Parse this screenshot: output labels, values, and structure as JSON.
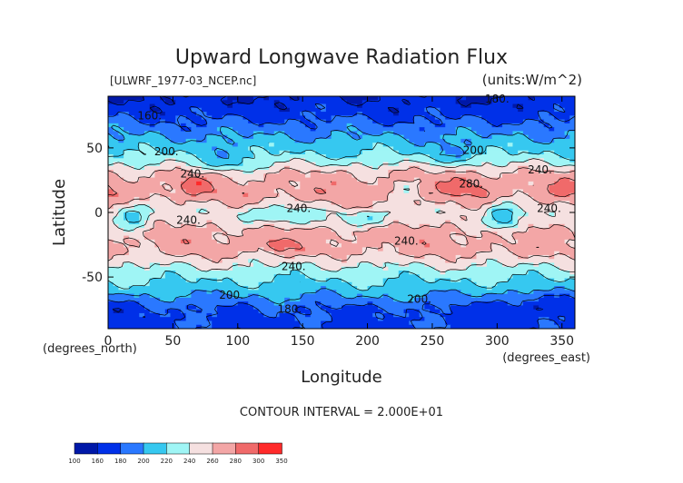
{
  "chart_data": {
    "type": "heatmap",
    "title": "Upward Longwave Radiation Flux",
    "subtitle_left": "[ULWRF_1977-03_NCEP.nc]",
    "units": "(units:W/m^2)",
    "xlabel": "Longitude",
    "ylabel": "Latitude",
    "x_unit_note": "(degrees_east)",
    "y_unit_note": "(degrees_north)",
    "xlim": [
      0,
      360
    ],
    "ylim": [
      -90,
      90
    ],
    "x_ticks": [
      0,
      50,
      100,
      150,
      200,
      250,
      300,
      350
    ],
    "y_ticks": [
      -50,
      0,
      50
    ],
    "contour_interval_text": "CONTOUR INTERVAL = 2.000E+01",
    "contour_labels": [
      {
        "text": "160.",
        "lon": 32,
        "lat": 75
      },
      {
        "text": "180.",
        "lon": 300,
        "lat": 88
      },
      {
        "text": "200.",
        "lon": 45,
        "lat": 47
      },
      {
        "text": "200.",
        "lon": 283,
        "lat": 48
      },
      {
        "text": "240.",
        "lon": 65,
        "lat": 30
      },
      {
        "text": "240.",
        "lon": 333,
        "lat": 33
      },
      {
        "text": "280.",
        "lon": 280,
        "lat": 22
      },
      {
        "text": "240.",
        "lon": 62,
        "lat": -6
      },
      {
        "text": "240.",
        "lon": 147,
        "lat": 3
      },
      {
        "text": "240.",
        "lon": 230,
        "lat": -22
      },
      {
        "text": "240.",
        "lon": 340,
        "lat": 3
      },
      {
        "text": "240.",
        "lon": 143,
        "lat": -42
      },
      {
        "text": "200.",
        "lon": 95,
        "lat": -64
      },
      {
        "text": "200.",
        "lon": 240,
        "lat": -67
      },
      {
        "text": "180.",
        "lon": 140,
        "lat": -75
      }
    ],
    "colorbar": {
      "boundaries": [
        "100",
        "160",
        "180",
        "200",
        "220",
        "240",
        "260",
        "280",
        "300",
        "350"
      ],
      "colors": [
        "#0018a8",
        "#0030e8",
        "#2a78ff",
        "#36c8f0",
        "#9ff5f5",
        "#f5e0e0",
        "#f3a6a6",
        "#f06a6a",
        "#ff2a2a"
      ]
    },
    "field_model": {
      "bands_lat_mean": [
        {
          "lat": 90,
          "value": 160
        },
        {
          "lat": 75,
          "value": 175
        },
        {
          "lat": 60,
          "value": 198
        },
        {
          "lat": 45,
          "value": 220
        },
        {
          "lat": 30,
          "value": 262
        },
        {
          "lat": 15,
          "value": 272
        },
        {
          "lat": 0,
          "value": 250
        },
        {
          "lat": -15,
          "value": 268
        },
        {
          "lat": -30,
          "value": 266
        },
        {
          "lat": -45,
          "value": 232
        },
        {
          "lat": -60,
          "value": 210
        },
        {
          "lat": -75,
          "value": 178
        },
        {
          "lat": -90,
          "value": 175
        }
      ]
    }
  }
}
